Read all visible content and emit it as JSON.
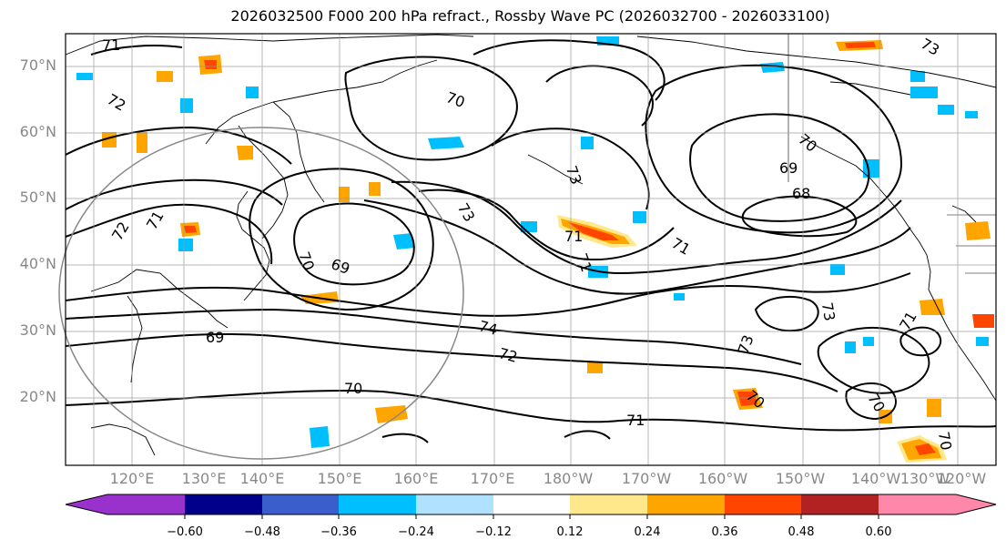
{
  "title": "2026032500 F000 200 hPa refract., Rossby Wave PC (2026032700 - 2026033100)",
  "lat_labels": [
    "70°N",
    "60°N",
    "50°N",
    "40°N",
    "30°N",
    "20°N"
  ],
  "lon_labels": [
    "120°E",
    "130°E",
    "140°E",
    "150°E",
    "160°E",
    "170°E",
    "180°W",
    "170°W",
    "160°W",
    "150°W",
    "140°W",
    "130°W",
    "120°W"
  ],
  "contour_labels": [
    "71",
    "72",
    "72",
    "71",
    "69",
    "70",
    "73",
    "70",
    "69",
    "68",
    "71",
    "71",
    "69",
    "70",
    "74",
    "72",
    "70",
    "71",
    "73",
    "73",
    "73",
    "71",
    "71",
    "70",
    "70",
    "70",
    "73"
  ],
  "colorbar": {
    "ticks": [
      "−0.60",
      "−0.48",
      "−0.36",
      "−0.24",
      "−0.12",
      "0.12",
      "0.24",
      "0.36",
      "0.48",
      "0.60"
    ],
    "colors": [
      "#9932CC",
      "#00008B",
      "#3A5FCD",
      "#00BFFF",
      "#B0E2FF",
      "#FFFFFF",
      "#FFE88C",
      "#FFA500",
      "#FF4500",
      "#B22222",
      "#FF88AA"
    ]
  },
  "colors": {
    "contour": "#000000",
    "coast": "#000000",
    "grid": "#999999",
    "circle": "#888888",
    "label": "#888888"
  }
}
